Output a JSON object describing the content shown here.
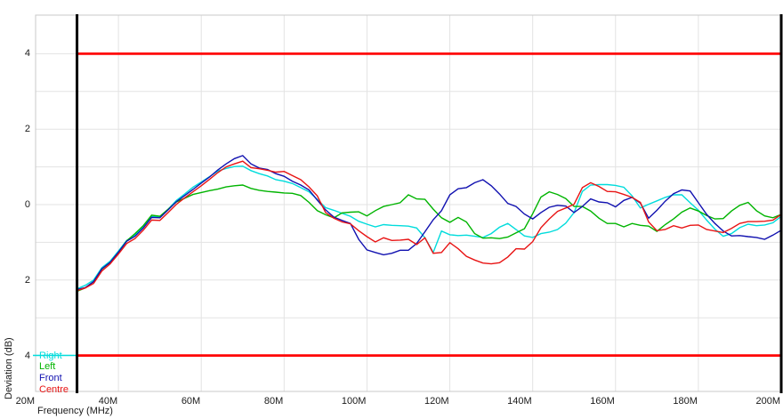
{
  "chart_data": {
    "type": "line",
    "title": "",
    "xlabel": "Frequency (MHz)",
    "ylabel": "Deviation (dB)",
    "grid": true,
    "colors": {
      "background": "#ffffff",
      "gridline": "#e3e3e3",
      "plot_border": "#c8c8c8",
      "axis_text": "#1a1a1a",
      "limit_line": "#ff0000",
      "marker_line": "#000000"
    },
    "x_axis": {
      "unit": "MHz",
      "min": 20,
      "max": 200,
      "grid_step_mhz": 20,
      "ticks": [
        {
          "mhz": 20,
          "label": "20M"
        },
        {
          "mhz": 40,
          "label": "40M"
        },
        {
          "mhz": 60,
          "label": "60M"
        },
        {
          "mhz": 80,
          "label": "80M"
        },
        {
          "mhz": 100,
          "label": "100M"
        },
        {
          "mhz": 120,
          "label": "120M"
        },
        {
          "mhz": 140,
          "label": "140M"
        },
        {
          "mhz": 160,
          "label": "160M"
        },
        {
          "mhz": 180,
          "label": "180M"
        },
        {
          "mhz": 200,
          "label": "200M"
        }
      ]
    },
    "y_axis": {
      "unit": "dB",
      "min": -5,
      "max": 5,
      "grid_step_db": 1,
      "ticks": [
        {
          "db": 4,
          "label": "4"
        },
        {
          "db": 2,
          "label": "2"
        },
        {
          "db": 0,
          "label": "0"
        },
        {
          "db": -2,
          "label": "2"
        },
        {
          "db": -4,
          "label": "4"
        }
      ]
    },
    "limit_lines": {
      "color": "#ff0000",
      "upper_db": 4,
      "lower_db": -4,
      "from_mhz": 30,
      "to_mhz": 200
    },
    "marker_lines": {
      "color": "#000000",
      "mhz": [
        30,
        200
      ]
    },
    "legend_position": "bottom-left",
    "frequencies_mhz": [
      30,
      32,
      34,
      36,
      38,
      40,
      42,
      44,
      46,
      48,
      50,
      52,
      54,
      56,
      58,
      60,
      62,
      64,
      66,
      68,
      70,
      72,
      74,
      76,
      78,
      80,
      82,
      84,
      86,
      88,
      90,
      92,
      94,
      96,
      98,
      100,
      102,
      104,
      106,
      108,
      110,
      112,
      114,
      116,
      118,
      120,
      122,
      124,
      126,
      128,
      130,
      132,
      134,
      136,
      138,
      140,
      142,
      144,
      146,
      148,
      150,
      152,
      154,
      156,
      158,
      160,
      162,
      164,
      166,
      168,
      170,
      172,
      174,
      176,
      178,
      180,
      182,
      184,
      186,
      188,
      190,
      192,
      194,
      196,
      198,
      200
    ],
    "series": [
      {
        "name": "Right",
        "color": "#00dcdc",
        "legend_sample_line": true,
        "deviation_db": [
          -2.23,
          -2.14,
          -2.0,
          -1.67,
          -1.5,
          -1.23,
          -0.95,
          -0.81,
          -0.6,
          -0.32,
          -0.32,
          -0.12,
          0.11,
          0.28,
          0.46,
          0.6,
          0.74,
          0.89,
          0.96,
          1.01,
          1.02,
          0.9,
          0.82,
          0.76,
          0.66,
          0.62,
          0.56,
          0.45,
          0.34,
          0.14,
          -0.08,
          -0.15,
          -0.23,
          -0.31,
          -0.44,
          -0.52,
          -0.59,
          -0.53,
          -0.55,
          -0.56,
          -0.57,
          -0.62,
          -0.88,
          -1.27,
          -0.7,
          -0.8,
          -0.82,
          -0.81,
          -0.84,
          -0.87,
          -0.77,
          -0.6,
          -0.5,
          -0.66,
          -0.83,
          -0.87,
          -0.77,
          -0.73,
          -0.66,
          -0.49,
          -0.21,
          0.35,
          0.52,
          0.53,
          0.53,
          0.51,
          0.46,
          0.23,
          -0.09,
          0.01,
          0.1,
          0.19,
          0.26,
          0.26,
          0.05,
          -0.15,
          -0.41,
          -0.65,
          -0.84,
          -0.77,
          -0.61,
          -0.52,
          -0.56,
          -0.54,
          -0.48,
          -0.31
        ]
      },
      {
        "name": "Left",
        "color": "#00b400",
        "legend_sample_line": false,
        "deviation_db": [
          -2.3,
          -2.21,
          -2.04,
          -1.71,
          -1.53,
          -1.27,
          -0.96,
          -0.77,
          -0.56,
          -0.28,
          -0.31,
          -0.12,
          0.07,
          0.17,
          0.27,
          0.32,
          0.37,
          0.41,
          0.47,
          0.5,
          0.52,
          0.43,
          0.38,
          0.35,
          0.33,
          0.31,
          0.3,
          0.24,
          0.06,
          -0.16,
          -0.27,
          -0.35,
          -0.22,
          -0.2,
          -0.19,
          -0.3,
          -0.16,
          -0.05,
          0.0,
          0.05,
          0.26,
          0.15,
          0.14,
          -0.12,
          -0.35,
          -0.47,
          -0.34,
          -0.46,
          -0.77,
          -0.89,
          -0.88,
          -0.9,
          -0.86,
          -0.75,
          -0.64,
          -0.24,
          0.2,
          0.34,
          0.27,
          0.16,
          -0.05,
          -0.05,
          -0.17,
          -0.36,
          -0.5,
          -0.5,
          -0.59,
          -0.5,
          -0.55,
          -0.57,
          -0.71,
          -0.53,
          -0.38,
          -0.2,
          -0.09,
          -0.17,
          -0.29,
          -0.38,
          -0.37,
          -0.17,
          -0.02,
          0.06,
          -0.16,
          -0.3,
          -0.35,
          -0.26
        ]
      },
      {
        "name": "Front",
        "color": "#1111b0",
        "legend_sample_line": false,
        "deviation_db": [
          -2.25,
          -2.2,
          -2.04,
          -1.7,
          -1.53,
          -1.26,
          -0.97,
          -0.84,
          -0.62,
          -0.34,
          -0.35,
          -0.14,
          0.08,
          0.24,
          0.4,
          0.57,
          0.73,
          0.92,
          1.08,
          1.22,
          1.3,
          1.08,
          0.97,
          0.93,
          0.82,
          0.75,
          0.62,
          0.52,
          0.39,
          0.12,
          -0.14,
          -0.33,
          -0.42,
          -0.5,
          -0.92,
          -1.2,
          -1.27,
          -1.33,
          -1.29,
          -1.21,
          -1.21,
          -1.03,
          -0.72,
          -0.4,
          -0.16,
          0.26,
          0.42,
          0.45,
          0.58,
          0.66,
          0.5,
          0.28,
          0.03,
          -0.05,
          -0.25,
          -0.38,
          -0.21,
          -0.07,
          -0.02,
          -0.04,
          -0.21,
          -0.05,
          0.15,
          0.07,
          0.05,
          -0.06,
          0.11,
          0.19,
          0.04,
          -0.36,
          -0.15,
          0.09,
          0.29,
          0.39,
          0.36,
          0.05,
          -0.26,
          -0.5,
          -0.7,
          -0.83,
          -0.82,
          -0.85,
          -0.87,
          -0.92,
          -0.81,
          -0.68
        ]
      },
      {
        "name": "Centre",
        "color": "#e81414",
        "legend_sample_line": false,
        "deviation_db": [
          -2.28,
          -2.21,
          -2.09,
          -1.76,
          -1.57,
          -1.31,
          -1.03,
          -0.9,
          -0.68,
          -0.41,
          -0.42,
          -0.21,
          0.01,
          0.18,
          0.34,
          0.5,
          0.67,
          0.85,
          1.0,
          1.08,
          1.15,
          0.98,
          0.95,
          0.91,
          0.86,
          0.88,
          0.77,
          0.66,
          0.47,
          0.23,
          -0.21,
          -0.36,
          -0.46,
          -0.51,
          -0.69,
          -0.85,
          -0.99,
          -0.88,
          -0.95,
          -0.94,
          -0.92,
          -1.06,
          -0.88,
          -1.29,
          -1.27,
          -1.01,
          -1.17,
          -1.37,
          -1.47,
          -1.55,
          -1.57,
          -1.54,
          -1.39,
          -1.17,
          -1.18,
          -0.98,
          -0.61,
          -0.38,
          -0.18,
          -0.09,
          0.01,
          0.45,
          0.58,
          0.48,
          0.35,
          0.34,
          0.27,
          0.19,
          0.06,
          -0.46,
          -0.69,
          -0.66,
          -0.56,
          -0.62,
          -0.55,
          -0.54,
          -0.66,
          -0.7,
          -0.74,
          -0.63,
          -0.5,
          -0.45,
          -0.45,
          -0.44,
          -0.41,
          -0.26
        ]
      }
    ]
  }
}
